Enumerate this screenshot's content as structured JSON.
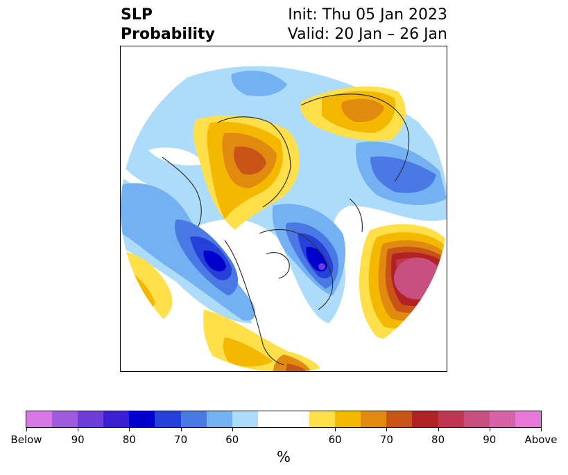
{
  "title": {
    "left_line1": "SLP",
    "left_line2": "Probability",
    "right_line1": "Init: Thu 05 Jan 2023",
    "right_line2": "Valid: 20 Jan – 26 Jan"
  },
  "colorbar": {
    "units_label": "%",
    "colors": [
      "#d878e8",
      "#a05ae0",
      "#6e3cdc",
      "#3b1fd2",
      "#0000cc",
      "#2641d9",
      "#4a78e4",
      "#74b1f2",
      "#addcfa",
      "#ffffff",
      "#ffe04a",
      "#f5b800",
      "#e08a10",
      "#c85418",
      "#b22224",
      "#c03550",
      "#c85080",
      "#d862a8",
      "#e878d8"
    ],
    "tick_labels": [
      "Below",
      "90",
      "80",
      "70",
      "60",
      "60",
      "70",
      "80",
      "90",
      "Above"
    ]
  },
  "map": {
    "projection": "north-polar-stereographic",
    "anomaly_regions": [
      {
        "name": "western-north-america-below",
        "sign": "below",
        "max_category": "90"
      },
      {
        "name": "north-atlantic-arctic-below",
        "sign": "below",
        "max_category": "90"
      },
      {
        "name": "north-pacific-above",
        "sign": "above",
        "max_category": "Above"
      },
      {
        "name": "western-siberia-above",
        "sign": "above",
        "max_category": "80"
      },
      {
        "name": "europe-above",
        "sign": "above",
        "max_category": "70"
      },
      {
        "name": "southern-united-states-above",
        "sign": "above",
        "max_category": "70"
      }
    ]
  }
}
